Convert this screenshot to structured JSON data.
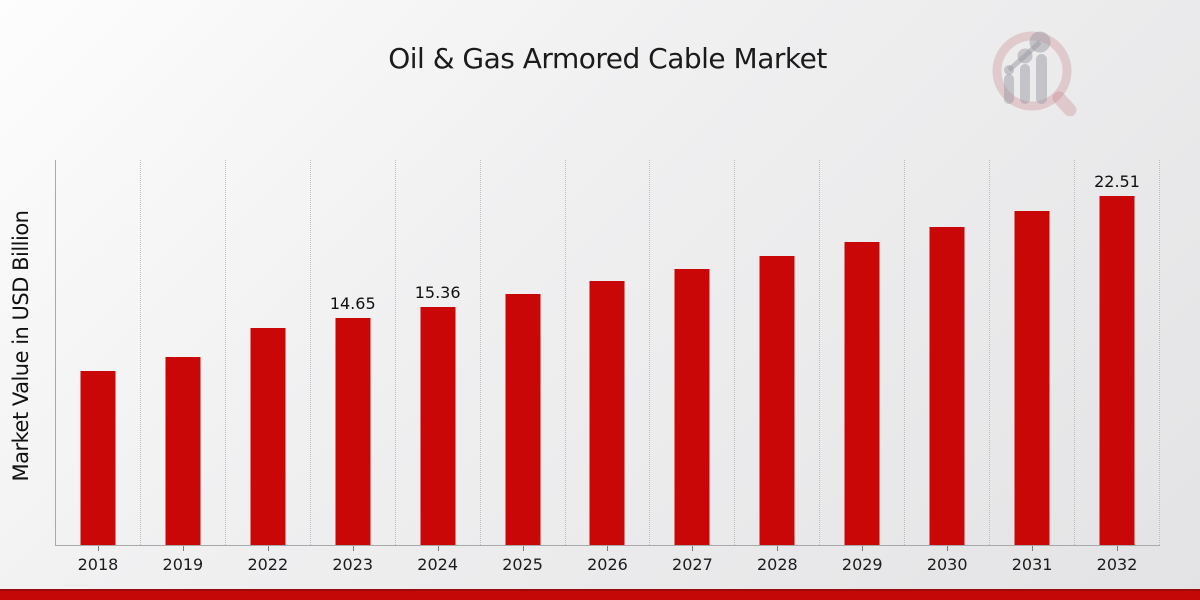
{
  "header": {
    "title": "Oil & Gas Armored Cable Market",
    "logo_name": "market-research-magnifier-logo"
  },
  "chart_data": {
    "type": "bar",
    "title": "Oil & Gas Armored Cable Market",
    "xlabel": "",
    "ylabel": "Market Value in USD Billion",
    "categories": [
      "2018",
      "2019",
      "2022",
      "2023",
      "2024",
      "2025",
      "2026",
      "2027",
      "2028",
      "2029",
      "2030",
      "2031",
      "2032"
    ],
    "values": [
      11.2,
      12.1,
      14.0,
      14.65,
      15.36,
      16.2,
      17.0,
      17.8,
      18.65,
      19.55,
      20.5,
      21.55,
      22.51
    ],
    "point_labels": [
      "",
      "",
      "",
      "14.65",
      "15.36",
      "",
      "",
      "",
      "",
      "",
      "",
      "",
      "22.51"
    ],
    "ylim": [
      0,
      24.9
    ],
    "bar_color": "#ca0707",
    "grid": "vertical-dotted",
    "legend": "none",
    "y_tick_labels_visible": false
  },
  "style": {
    "accent_strip_color": "#c40808",
    "accent_strip_edge_color": "#9c0b0b",
    "axis_color": "#a9a9ab",
    "gridline_color": "#bdbdbf",
    "background_start": "#fdfdfd",
    "background_end": "#e3e3e5"
  }
}
